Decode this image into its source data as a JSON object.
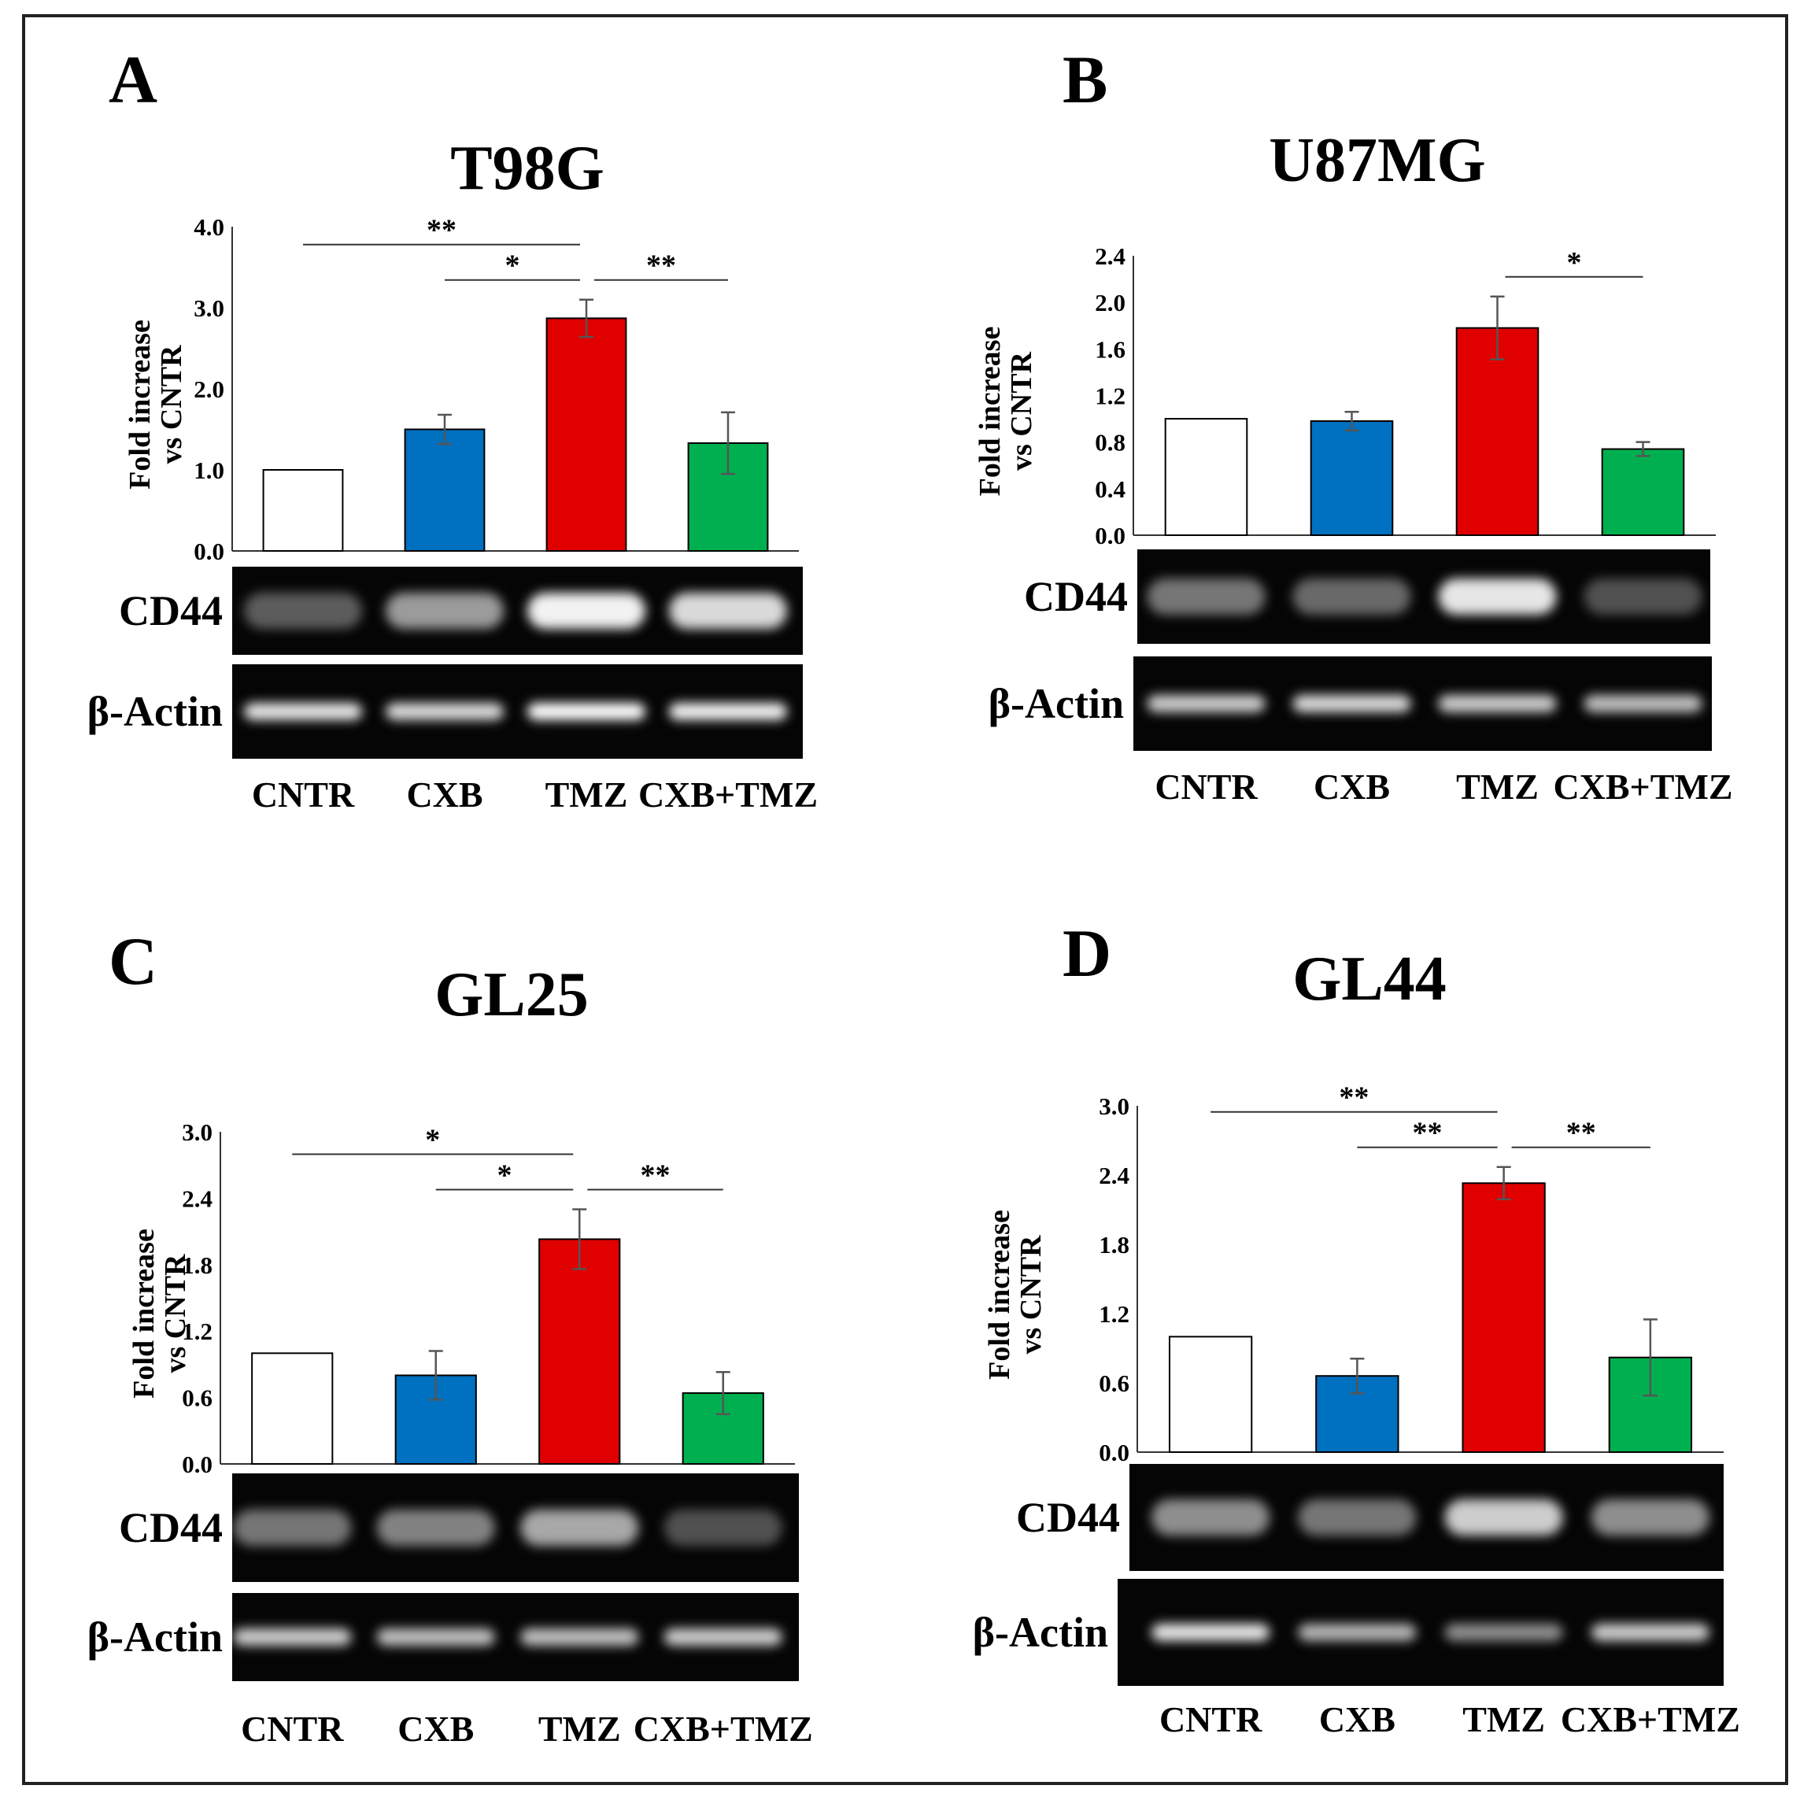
{
  "colors": {
    "CNTR": "#ffffff",
    "CXB": "#0070c0",
    "TMZ": "#e00000",
    "CXB+TMZ": "#00b050"
  },
  "y_axis_label": [
    "Fold increase",
    "vs CNTR"
  ],
  "blot_labels": {
    "target": "CD44",
    "loading": "β-Actin"
  },
  "chart_data": [
    {
      "type": "bar",
      "panel_label": "A",
      "title": "T98G",
      "categories": [
        "CNTR",
        "CXB",
        "TMZ",
        "CXB+TMZ"
      ],
      "values": [
        1.0,
        1.5,
        2.87,
        1.33
      ],
      "errors": [
        0.0,
        0.18,
        0.23,
        0.38
      ],
      "ylim": [
        0,
        4.0
      ],
      "yticks": [
        "0.0",
        "1.0",
        "2.0",
        "3.0",
        "4.0"
      ],
      "ytick_values": [
        0,
        1,
        2,
        3,
        4
      ],
      "significance": [
        {
          "from": 0,
          "to": 2,
          "label": "**",
          "level": 1
        },
        {
          "from": 1,
          "to": 2,
          "label": "*",
          "level": 0
        },
        {
          "from": 2,
          "to": 3,
          "label": "**",
          "level": 0
        }
      ]
    },
    {
      "type": "bar",
      "panel_label": "B",
      "title": "U87MG",
      "categories": [
        "CNTR",
        "CXB",
        "TMZ",
        "CXB+TMZ"
      ],
      "values": [
        1.0,
        0.98,
        1.78,
        0.74
      ],
      "errors": [
        0.0,
        0.08,
        0.27,
        0.06
      ],
      "ylim": [
        0,
        2.4
      ],
      "yticks": [
        "0.0",
        "0.4",
        "0.8",
        "1.2",
        "1.6",
        "2.0",
        "2.4"
      ],
      "ytick_values": [
        0,
        0.4,
        0.8,
        1.2,
        1.6,
        2.0,
        2.4
      ],
      "significance": [
        {
          "from": 2,
          "to": 3,
          "label": "*",
          "level": 0
        }
      ]
    },
    {
      "type": "bar",
      "panel_label": "C",
      "title": "GL25",
      "categories": [
        "CNTR",
        "CXB",
        "TMZ",
        "CXB+TMZ"
      ],
      "values": [
        1.0,
        0.8,
        2.03,
        0.64
      ],
      "errors": [
        0.0,
        0.22,
        0.27,
        0.19
      ],
      "ylim": [
        0,
        3.0
      ],
      "yticks": [
        "0.0",
        "0.6",
        "1.2",
        "1.8",
        "2.4",
        "3.0"
      ],
      "ytick_values": [
        0,
        0.6,
        1.2,
        1.8,
        2.4,
        3.0
      ],
      "significance": [
        {
          "from": 0,
          "to": 2,
          "label": "*",
          "level": 1
        },
        {
          "from": 1,
          "to": 2,
          "label": "*",
          "level": 0
        },
        {
          "from": 2,
          "to": 3,
          "label": "**",
          "level": 0
        }
      ]
    },
    {
      "type": "bar",
      "panel_label": "D",
      "title": "GL44",
      "categories": [
        "CNTR",
        "CXB",
        "TMZ",
        "CXB+TMZ"
      ],
      "values": [
        1.0,
        0.66,
        2.33,
        0.82
      ],
      "errors": [
        0.0,
        0.15,
        0.14,
        0.33
      ],
      "ylim": [
        0,
        3.0
      ],
      "yticks": [
        "0.0",
        "0.6",
        "1.2",
        "1.8",
        "2.4",
        "3.0"
      ],
      "ytick_values": [
        0,
        0.6,
        1.2,
        1.8,
        2.4,
        3.0
      ],
      "significance": [
        {
          "from": 0,
          "to": 2,
          "label": "**",
          "level": 1
        },
        {
          "from": 1,
          "to": 2,
          "label": "**",
          "level": 0
        },
        {
          "from": 2,
          "to": 3,
          "label": "**",
          "level": 0
        }
      ]
    }
  ]
}
